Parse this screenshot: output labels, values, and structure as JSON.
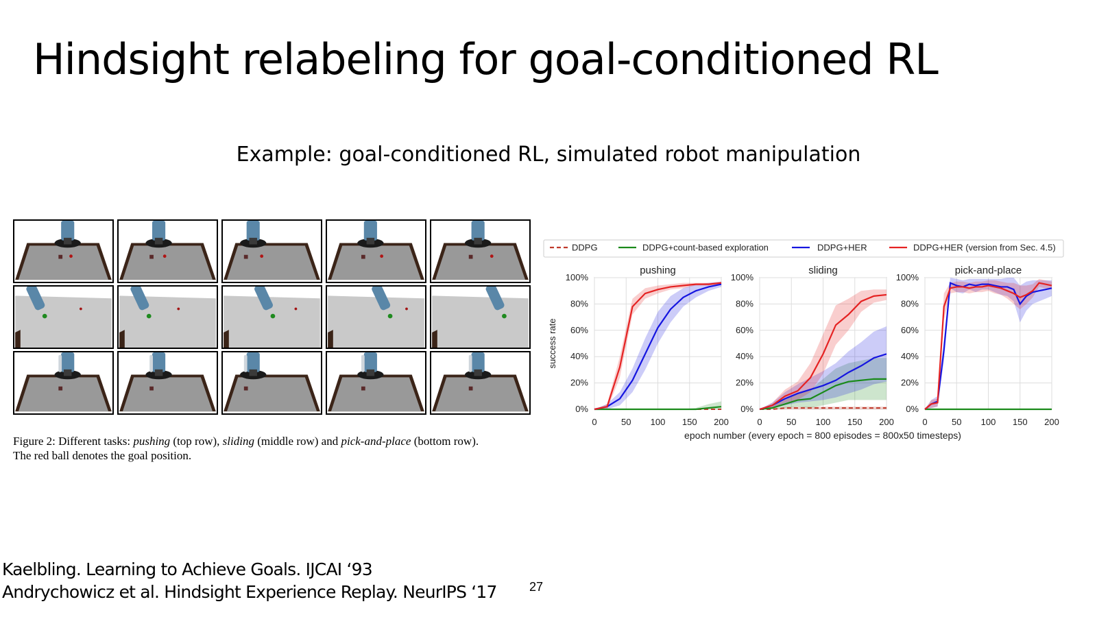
{
  "slide": {
    "title": "Hindsight relabeling for goal-conditioned RL",
    "subtitle": "Example: goal-conditioned RL, simulated robot manipulation",
    "page_number": "27"
  },
  "figure": {
    "caption_line1_a": "Figure 2: Different tasks: ",
    "caption_line1_b": "pushing",
    "caption_line1_c": " (top row), ",
    "caption_line1_d": "sliding",
    "caption_line1_e": " (middle row) and ",
    "caption_line1_f": "pick-and-place",
    "caption_line1_g": " (bottom row).",
    "caption_line2": "The red ball denotes the goal position.",
    "rows": [
      "pushing",
      "sliding",
      "pick-and-place"
    ],
    "columns": 5
  },
  "references": {
    "ref1": "Kaelbling. Learning to Achieve Goals. IJCAI ‘93",
    "ref2": "Andrychowicz et al. Hindsight Experience Replay. NeurIPS ‘17"
  },
  "colors": {
    "ddpg": "#c0392b",
    "count": "#1a8a1a",
    "her": "#1515e0",
    "her_v": "#e52222"
  },
  "chart_data": [
    {
      "type": "line",
      "title": "pushing",
      "xlabel": "epoch number (every epoch = 800 episodes = 800x50 timesteps)",
      "ylabel": "success rate",
      "xlim": [
        0,
        200
      ],
      "ylim": [
        0,
        100
      ],
      "xticks": [
        0,
        50,
        100,
        150,
        200
      ],
      "yticks": [
        0,
        20,
        40,
        60,
        80,
        100
      ],
      "ytick_labels": [
        "0%",
        "20%",
        "40%",
        "60%",
        "80%",
        "100%"
      ],
      "grid": true,
      "legend": [
        "DDPG",
        "DDPG+count-based exploration",
        "DDPG+HER",
        "DDPG+HER (version from Sec. 4.5)"
      ],
      "x": [
        0,
        20,
        40,
        60,
        80,
        100,
        120,
        140,
        160,
        180,
        200
      ],
      "series": [
        {
          "name": "DDPG",
          "values": [
            0,
            0,
            0,
            0,
            0,
            0,
            0,
            0,
            0,
            0,
            0
          ],
          "spread": [
            0,
            0,
            0,
            0,
            0,
            0,
            0,
            0,
            0,
            0,
            0
          ]
        },
        {
          "name": "DDPG+count-based exploration",
          "values": [
            0,
            0,
            0,
            0,
            0,
            0,
            0,
            0,
            0,
            1,
            2
          ],
          "spread": [
            0,
            0,
            0,
            0,
            0,
            0,
            0,
            0,
            1,
            3,
            4
          ]
        },
        {
          "name": "DDPG+HER",
          "values": [
            0,
            2,
            8,
            22,
            42,
            62,
            76,
            85,
            90,
            93,
            95
          ],
          "spread": [
            0,
            2,
            5,
            9,
            12,
            12,
            10,
            7,
            5,
            3,
            2
          ]
        },
        {
          "name": "DDPG+HER (version from Sec. 4.5)",
          "values": [
            0,
            2,
            32,
            78,
            88,
            91,
            93,
            94,
            95,
            95,
            96
          ],
          "spread": [
            0,
            2,
            8,
            6,
            4,
            3,
            2,
            2,
            1,
            1,
            1
          ]
        }
      ]
    },
    {
      "type": "line",
      "title": "sliding",
      "xlim": [
        0,
        200
      ],
      "ylim": [
        0,
        100
      ],
      "xticks": [
        0,
        50,
        100,
        150,
        200
      ],
      "yticks": [
        0,
        20,
        40,
        60,
        80,
        100
      ],
      "ytick_labels": [
        "0%",
        "20%",
        "40%",
        "60%",
        "80%",
        "100%"
      ],
      "grid": true,
      "x": [
        0,
        20,
        40,
        60,
        80,
        100,
        120,
        140,
        160,
        180,
        200
      ],
      "series": [
        {
          "name": "DDPG",
          "values": [
            0,
            0,
            1,
            1,
            1,
            1,
            1,
            1,
            1,
            1,
            1
          ],
          "spread": [
            0,
            0,
            1,
            1,
            1,
            1,
            1,
            1,
            1,
            1,
            1
          ]
        },
        {
          "name": "DDPG+count-based exploration",
          "values": [
            0,
            1,
            4,
            7,
            8,
            13,
            18,
            21,
            22,
            23,
            23
          ],
          "spread": [
            0,
            1,
            3,
            5,
            7,
            10,
            13,
            14,
            15,
            16,
            16
          ]
        },
        {
          "name": "DDPG+HER",
          "values": [
            0,
            3,
            8,
            12,
            15,
            18,
            22,
            28,
            33,
            39,
            42
          ],
          "spread": [
            0,
            2,
            5,
            7,
            9,
            11,
            13,
            16,
            18,
            20,
            21
          ]
        },
        {
          "name": "DDPG+HER (version from Sec. 4.5)",
          "values": [
            0,
            3,
            10,
            14,
            24,
            42,
            64,
            72,
            82,
            86,
            87
          ],
          "spread": [
            0,
            2,
            5,
            7,
            11,
            15,
            15,
            12,
            8,
            5,
            4
          ]
        }
      ]
    },
    {
      "type": "line",
      "title": "pick-and-place",
      "xlim": [
        0,
        200
      ],
      "ylim": [
        0,
        100
      ],
      "xticks": [
        0,
        50,
        100,
        150,
        200
      ],
      "yticks": [
        0,
        20,
        40,
        60,
        80,
        100
      ],
      "ytick_labels": [
        "0%",
        "20%",
        "40%",
        "60%",
        "80%",
        "100%"
      ],
      "grid": true,
      "x": [
        0,
        10,
        20,
        30,
        40,
        50,
        60,
        70,
        80,
        90,
        100,
        110,
        120,
        130,
        140,
        150,
        160,
        170,
        180,
        190,
        200
      ],
      "series": [
        {
          "name": "DDPG",
          "values": [
            0,
            0,
            0,
            0,
            0,
            0,
            0,
            0,
            0,
            0,
            0,
            0,
            0,
            0,
            0,
            0,
            0,
            0,
            0,
            0,
            0
          ],
          "spread": [
            0,
            0,
            0,
            0,
            0,
            0,
            0,
            0,
            0,
            0,
            0,
            0,
            0,
            0,
            0,
            0,
            0,
            0,
            0,
            0,
            0
          ]
        },
        {
          "name": "DDPG+count-based exploration",
          "values": [
            0,
            0,
            0,
            0,
            0,
            0,
            0,
            0,
            0,
            0,
            0,
            0,
            0,
            0,
            0,
            0,
            0,
            0,
            0,
            0,
            0
          ],
          "spread": [
            0,
            0,
            0,
            0,
            0,
            0,
            0,
            0,
            0,
            0,
            0,
            0,
            0,
            0,
            0,
            0,
            0,
            0,
            0,
            0,
            0
          ]
        },
        {
          "name": "DDPG+HER",
          "values": [
            0,
            4,
            6,
            45,
            96,
            94,
            93,
            95,
            94,
            95,
            95,
            94,
            93,
            93,
            91,
            80,
            86,
            89,
            90,
            91,
            92
          ],
          "spread": [
            0,
            3,
            4,
            8,
            4,
            5,
            5,
            4,
            5,
            4,
            4,
            5,
            6,
            7,
            9,
            14,
            11,
            9,
            8,
            7,
            6
          ]
        },
        {
          "name": "DDPG+HER (version from Sec. 4.5)",
          "values": [
            0,
            4,
            5,
            78,
            92,
            93,
            93,
            92,
            93,
            93,
            94,
            93,
            92,
            90,
            88,
            85,
            87,
            90,
            96,
            95,
            94
          ],
          "spread": [
            0,
            3,
            3,
            10,
            4,
            4,
            4,
            4,
            4,
            4,
            4,
            5,
            5,
            6,
            8,
            9,
            7,
            5,
            3,
            3,
            3
          ]
        }
      ]
    }
  ]
}
